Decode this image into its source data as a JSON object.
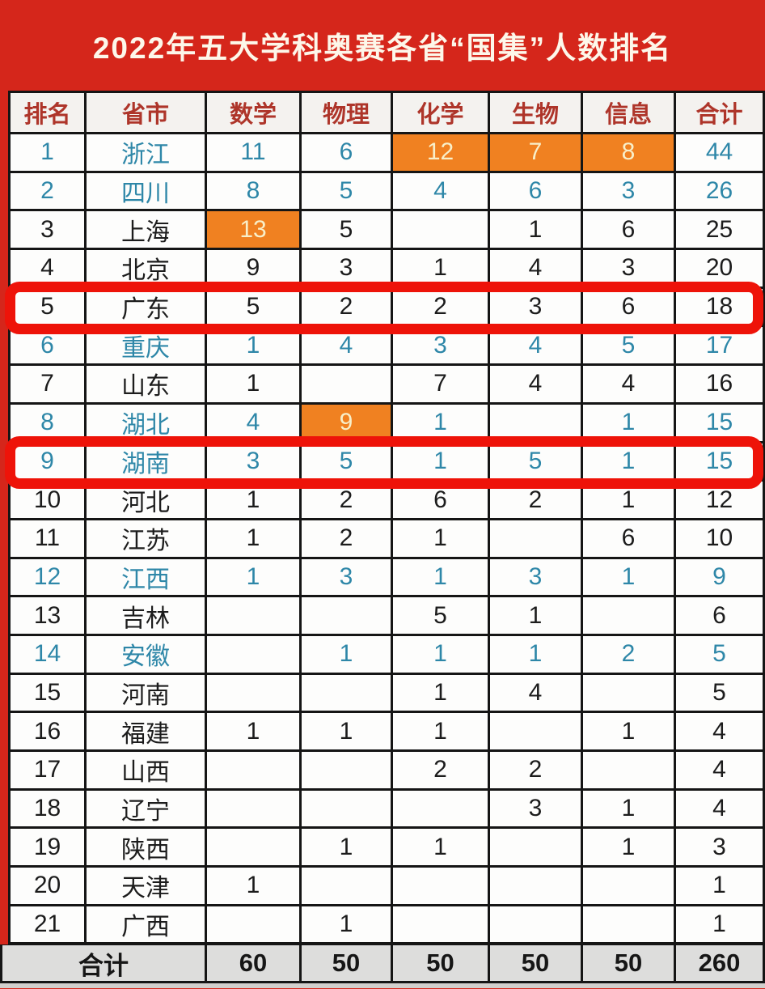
{
  "title": "2022年五大学科奥赛各省“国集”人数排名",
  "colors": {
    "bg_red": "#d5261b",
    "header_text": "#ae352a",
    "teal_text": "#2e87a8",
    "orange_bg": "#f08121",
    "orange_text": "#f8efc9",
    "highlight_red": "#ee1309",
    "footer_bg": "#dddddc"
  },
  "table": {
    "headers": [
      "排名",
      "省市",
      "数学",
      "物理",
      "化学",
      "生物",
      "信息",
      "合计"
    ],
    "rows": [
      {
        "rank": "1",
        "province": "浙江",
        "values": [
          "11",
          "6",
          "12",
          "7",
          "8",
          "44"
        ],
        "color": "teal",
        "orange": [
          2,
          3,
          4
        ],
        "red_outline": false
      },
      {
        "rank": "2",
        "province": "四川",
        "values": [
          "8",
          "5",
          "4",
          "6",
          "3",
          "26"
        ],
        "color": "teal",
        "orange": [],
        "red_outline": false
      },
      {
        "rank": "3",
        "province": "上海",
        "values": [
          "13",
          "5",
          "",
          "1",
          "6",
          "25"
        ],
        "color": "black",
        "orange": [
          0
        ],
        "red_outline": false
      },
      {
        "rank": "4",
        "province": "北京",
        "values": [
          "9",
          "3",
          "1",
          "4",
          "3",
          "20"
        ],
        "color": "black",
        "orange": [],
        "red_outline": false
      },
      {
        "rank": "5",
        "province": "广东",
        "values": [
          "5",
          "2",
          "2",
          "3",
          "6",
          "18"
        ],
        "color": "black",
        "orange": [],
        "red_outline": true
      },
      {
        "rank": "6",
        "province": "重庆",
        "values": [
          "1",
          "4",
          "3",
          "4",
          "5",
          "17"
        ],
        "color": "teal",
        "orange": [],
        "red_outline": false
      },
      {
        "rank": "7",
        "province": "山东",
        "values": [
          "1",
          "",
          "7",
          "4",
          "4",
          "16"
        ],
        "color": "black",
        "orange": [],
        "red_outline": false
      },
      {
        "rank": "8",
        "province": "湖北",
        "values": [
          "4",
          "9",
          "1",
          "",
          "1",
          "15"
        ],
        "color": "teal",
        "orange": [
          1
        ],
        "red_outline": false
      },
      {
        "rank": "9",
        "province": "湖南",
        "values": [
          "3",
          "5",
          "1",
          "5",
          "1",
          "15"
        ],
        "color": "teal",
        "orange": [],
        "red_outline": true
      },
      {
        "rank": "10",
        "province": "河北",
        "values": [
          "1",
          "2",
          "6",
          "2",
          "1",
          "12"
        ],
        "color": "black",
        "orange": [],
        "red_outline": false
      },
      {
        "rank": "11",
        "province": "江苏",
        "values": [
          "1",
          "2",
          "1",
          "",
          "6",
          "10"
        ],
        "color": "black",
        "orange": [],
        "red_outline": false
      },
      {
        "rank": "12",
        "province": "江西",
        "values": [
          "1",
          "3",
          "1",
          "3",
          "1",
          "9"
        ],
        "color": "teal",
        "orange": [],
        "red_outline": false
      },
      {
        "rank": "13",
        "province": "吉林",
        "values": [
          "",
          "",
          "5",
          "1",
          "",
          "6"
        ],
        "color": "black",
        "orange": [],
        "red_outline": false
      },
      {
        "rank": "14",
        "province": "安徽",
        "values": [
          "",
          "1",
          "1",
          "1",
          "2",
          "5"
        ],
        "color": "teal",
        "orange": [],
        "red_outline": false
      },
      {
        "rank": "15",
        "province": "河南",
        "values": [
          "",
          "",
          "1",
          "4",
          "",
          "5"
        ],
        "color": "black",
        "orange": [],
        "red_outline": false
      },
      {
        "rank": "16",
        "province": "福建",
        "values": [
          "1",
          "1",
          "1",
          "",
          "1",
          "4"
        ],
        "color": "black",
        "orange": [],
        "red_outline": false
      },
      {
        "rank": "17",
        "province": "山西",
        "values": [
          "",
          "",
          "2",
          "2",
          "",
          "4"
        ],
        "color": "black",
        "orange": [],
        "red_outline": false
      },
      {
        "rank": "18",
        "province": "辽宁",
        "values": [
          "",
          "",
          "",
          "3",
          "1",
          "4"
        ],
        "color": "black",
        "orange": [],
        "red_outline": false
      },
      {
        "rank": "19",
        "province": "陕西",
        "values": [
          "",
          "1",
          "1",
          "",
          "1",
          "3"
        ],
        "color": "black",
        "orange": [],
        "red_outline": false
      },
      {
        "rank": "20",
        "province": "天津",
        "values": [
          "1",
          "",
          "",
          "",
          "",
          "1"
        ],
        "color": "black",
        "orange": [],
        "red_outline": false
      },
      {
        "rank": "21",
        "province": "广西",
        "values": [
          "",
          "1",
          "",
          "",
          "",
          "1"
        ],
        "color": "black",
        "orange": [],
        "red_outline": false
      }
    ],
    "footer": {
      "label": "合计",
      "values": [
        "60",
        "50",
        "50",
        "50",
        "50",
        "260"
      ]
    }
  },
  "chart_data": {
    "type": "table",
    "title": "2022年五大学科奥赛各省“国集”人数排名",
    "columns": [
      "排名",
      "省市",
      "数学",
      "物理",
      "化学",
      "生物",
      "信息",
      "合计"
    ],
    "rows": [
      [
        1,
        "浙江",
        11,
        6,
        12,
        7,
        8,
        44
      ],
      [
        2,
        "四川",
        8,
        5,
        4,
        6,
        3,
        26
      ],
      [
        3,
        "上海",
        13,
        5,
        null,
        1,
        6,
        25
      ],
      [
        4,
        "北京",
        9,
        3,
        1,
        4,
        3,
        20
      ],
      [
        5,
        "广东",
        5,
        2,
        2,
        3,
        6,
        18
      ],
      [
        6,
        "重庆",
        1,
        4,
        3,
        4,
        5,
        17
      ],
      [
        7,
        "山东",
        1,
        null,
        7,
        4,
        4,
        16
      ],
      [
        8,
        "湖北",
        4,
        9,
        1,
        null,
        1,
        15
      ],
      [
        9,
        "湖南",
        3,
        5,
        1,
        5,
        1,
        15
      ],
      [
        10,
        "河北",
        1,
        2,
        6,
        2,
        1,
        12
      ],
      [
        11,
        "江苏",
        1,
        2,
        1,
        null,
        6,
        10
      ],
      [
        12,
        "江西",
        1,
        3,
        1,
        3,
        1,
        9
      ],
      [
        13,
        "吉林",
        null,
        null,
        5,
        1,
        null,
        6
      ],
      [
        14,
        "安徽",
        null,
        1,
        1,
        1,
        2,
        5
      ],
      [
        15,
        "河南",
        null,
        null,
        1,
        4,
        null,
        5
      ],
      [
        16,
        "福建",
        1,
        1,
        1,
        null,
        1,
        4
      ],
      [
        17,
        "山西",
        null,
        null,
        2,
        2,
        null,
        4
      ],
      [
        18,
        "辽宁",
        null,
        null,
        null,
        3,
        1,
        4
      ],
      [
        19,
        "陕西",
        null,
        1,
        1,
        null,
        1,
        3
      ],
      [
        20,
        "天津",
        1,
        null,
        null,
        null,
        null,
        1
      ],
      [
        21,
        "广西",
        null,
        1,
        null,
        null,
        null,
        1
      ]
    ],
    "totals_row": [
      "合计",
      60,
      50,
      50,
      50,
      50,
      260
    ],
    "annotations": {
      "orange_highlight_means": "highest value in each subject column",
      "orange_cells": [
        "浙江-化学-12",
        "浙江-生物-7",
        "浙江-信息-8",
        "上海-数学-13",
        "湖北-物理-9"
      ],
      "red_outlined_rows": [
        "广东",
        "湖南"
      ]
    }
  }
}
